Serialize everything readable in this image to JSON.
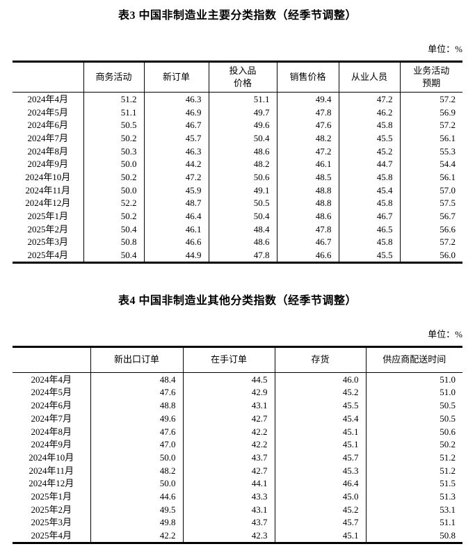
{
  "table3": {
    "title": "表3 中国非制造业主要分类指数（经季节调整）",
    "unit_label": "单位：%",
    "columns": [
      "商务活动",
      "新订单",
      "投入品\n价格",
      "销售价格",
      "从业人员",
      "业务活动\n预期"
    ],
    "rows": [
      {
        "label": "2024年4月",
        "values": [
          "51.2",
          "46.3",
          "51.1",
          "49.4",
          "47.2",
          "57.2"
        ]
      },
      {
        "label": "2024年5月",
        "values": [
          "51.1",
          "46.9",
          "49.7",
          "47.8",
          "46.2",
          "56.9"
        ]
      },
      {
        "label": "2024年6月",
        "values": [
          "50.5",
          "46.7",
          "49.6",
          "47.6",
          "45.8",
          "57.2"
        ]
      },
      {
        "label": "2024年7月",
        "values": [
          "50.2",
          "45.7",
          "50.4",
          "48.2",
          "45.5",
          "56.1"
        ]
      },
      {
        "label": "2024年8月",
        "values": [
          "50.3",
          "46.3",
          "48.6",
          "47.2",
          "45.2",
          "55.3"
        ]
      },
      {
        "label": "2024年9月",
        "values": [
          "50.0",
          "44.2",
          "48.2",
          "46.1",
          "44.7",
          "54.4"
        ]
      },
      {
        "label": "2024年10月",
        "values": [
          "50.2",
          "47.2",
          "50.6",
          "48.5",
          "45.8",
          "56.1"
        ]
      },
      {
        "label": "2024年11月",
        "values": [
          "50.0",
          "45.9",
          "49.1",
          "48.8",
          "45.4",
          "57.0"
        ]
      },
      {
        "label": "2024年12月",
        "values": [
          "52.2",
          "48.7",
          "50.5",
          "48.8",
          "45.8",
          "57.5"
        ]
      },
      {
        "label": "2025年1月",
        "values": [
          "50.2",
          "46.4",
          "50.4",
          "48.6",
          "46.7",
          "56.7"
        ]
      },
      {
        "label": "2025年2月",
        "values": [
          "50.4",
          "46.1",
          "48.4",
          "47.8",
          "46.5",
          "56.6"
        ]
      },
      {
        "label": "2025年3月",
        "values": [
          "50.8",
          "46.6",
          "48.6",
          "46.7",
          "45.8",
          "57.2"
        ]
      },
      {
        "label": "2025年4月",
        "values": [
          "50.4",
          "44.9",
          "47.8",
          "46.6",
          "45.5",
          "56.0"
        ]
      }
    ]
  },
  "table4": {
    "title": "表4 中国非制造业其他分类指数（经季节调整）",
    "unit_label": "单位：%",
    "columns": [
      "新出口订单",
      "在手订单",
      "存货",
      "供应商配送时间"
    ],
    "rows": [
      {
        "label": "2024年4月",
        "values": [
          "48.4",
          "44.5",
          "46.0",
          "51.0"
        ]
      },
      {
        "label": "2024年5月",
        "values": [
          "47.6",
          "42.9",
          "45.2",
          "51.0"
        ]
      },
      {
        "label": "2024年6月",
        "values": [
          "48.8",
          "43.1",
          "45.5",
          "50.5"
        ]
      },
      {
        "label": "2024年7月",
        "values": [
          "49.6",
          "42.7",
          "45.4",
          "50.5"
        ]
      },
      {
        "label": "2024年8月",
        "values": [
          "47.6",
          "42.2",
          "45.1",
          "50.6"
        ]
      },
      {
        "label": "2024年9月",
        "values": [
          "47.0",
          "42.2",
          "45.1",
          "50.2"
        ]
      },
      {
        "label": "2024年10月",
        "values": [
          "50.0",
          "43.7",
          "45.7",
          "51.2"
        ]
      },
      {
        "label": "2024年11月",
        "values": [
          "48.2",
          "42.7",
          "45.3",
          "51.2"
        ]
      },
      {
        "label": "2024年12月",
        "values": [
          "50.0",
          "44.1",
          "46.4",
          "51.5"
        ]
      },
      {
        "label": "2025年1月",
        "values": [
          "44.6",
          "43.3",
          "45.0",
          "51.3"
        ]
      },
      {
        "label": "2025年2月",
        "values": [
          "49.5",
          "43.1",
          "45.2",
          "53.1"
        ]
      },
      {
        "label": "2025年3月",
        "values": [
          "49.8",
          "43.7",
          "45.7",
          "51.1"
        ]
      },
      {
        "label": "2025年4月",
        "values": [
          "42.2",
          "42.3",
          "45.1",
          "50.8"
        ]
      }
    ]
  }
}
